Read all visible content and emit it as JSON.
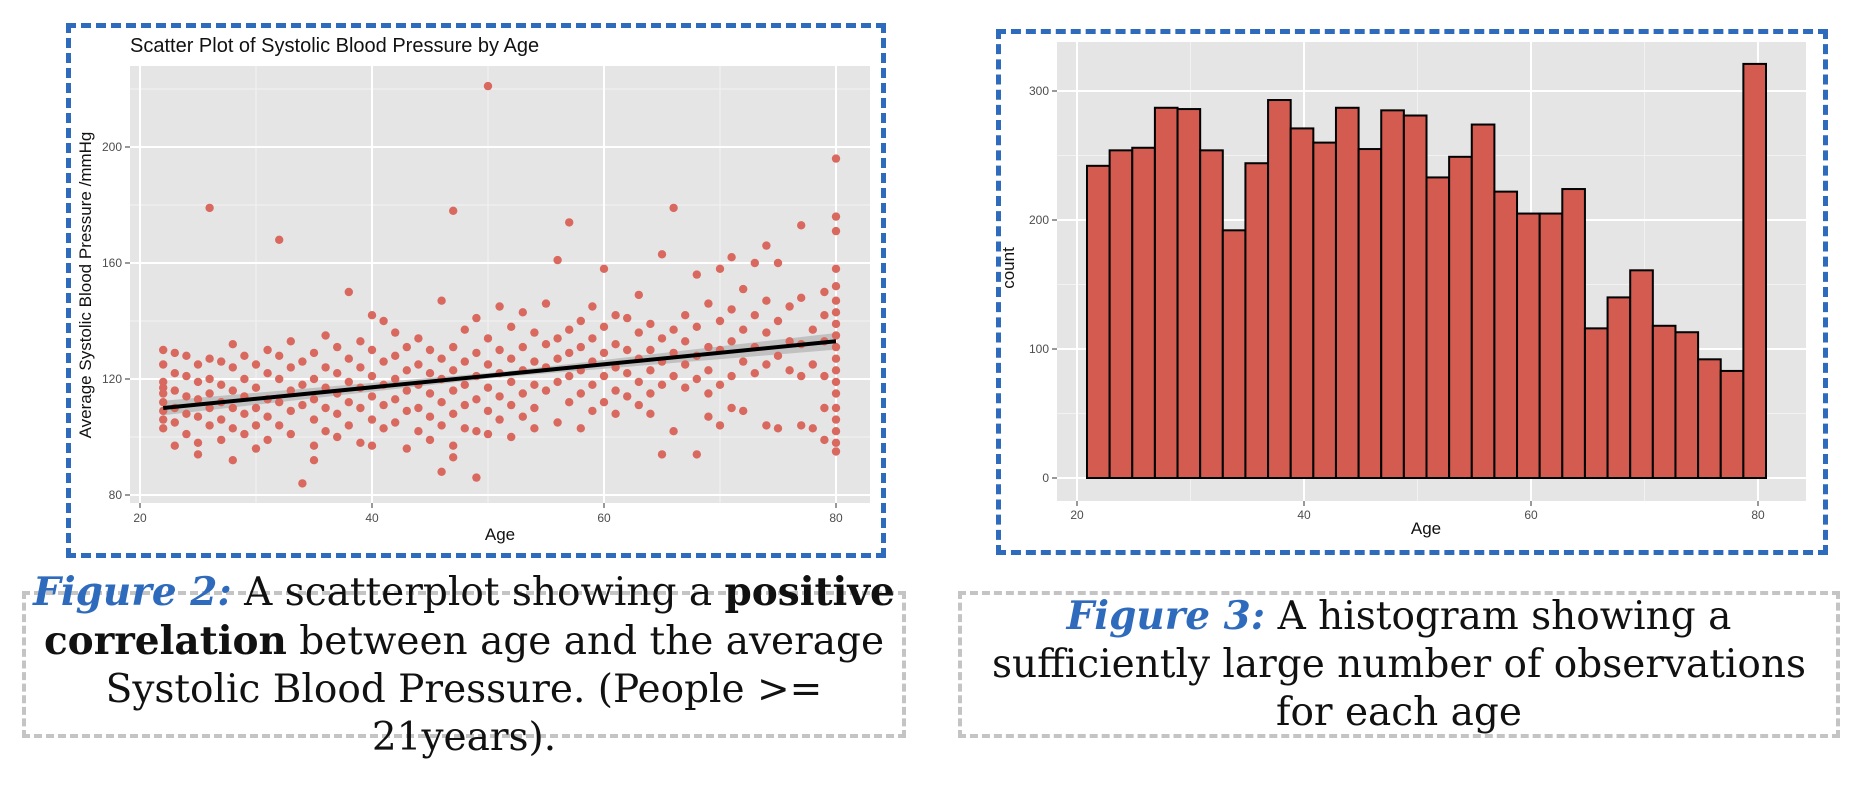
{
  "chart_data": [
    {
      "type": "scatter",
      "title": "Scatter Plot of Systolic Blood Pressure by Age",
      "xlabel": "Age",
      "ylabel": "Average Systolic Blood Pressure /mmHg",
      "xlim": [
        20,
        80
      ],
      "ylim": [
        80,
        220
      ],
      "xticks": [
        20,
        40,
        60,
        80
      ],
      "yticks": [
        80,
        120,
        160,
        200
      ],
      "grid": true,
      "point_color": "#d9695f",
      "background": "#e5e5e5",
      "trend_line": {
        "x": [
          22,
          80
        ],
        "y": [
          110,
          133
        ],
        "color": "#000000",
        "ci_color": "#bdbdbd",
        "ci_halfwidth": 1.8
      },
      "points": [
        [
          22,
          130
        ],
        [
          22,
          125
        ],
        [
          22,
          119
        ],
        [
          22,
          117
        ],
        [
          22,
          115
        ],
        [
          22,
          112
        ],
        [
          22,
          109
        ],
        [
          22,
          106
        ],
        [
          22,
          103
        ],
        [
          23,
          129
        ],
        [
          23,
          122
        ],
        [
          23,
          116
        ],
        [
          23,
          110
        ],
        [
          23,
          105
        ],
        [
          23,
          97
        ],
        [
          24,
          128
        ],
        [
          24,
          121
        ],
        [
          24,
          114
        ],
        [
          24,
          108
        ],
        [
          24,
          101
        ],
        [
          25,
          125
        ],
        [
          25,
          119
        ],
        [
          25,
          113
        ],
        [
          25,
          107
        ],
        [
          25,
          98
        ],
        [
          25,
          94
        ],
        [
          26,
          179
        ],
        [
          26,
          127
        ],
        [
          26,
          120
        ],
        [
          26,
          115
        ],
        [
          26,
          110
        ],
        [
          26,
          104
        ],
        [
          27,
          126
        ],
        [
          27,
          118
        ],
        [
          27,
          112
        ],
        [
          27,
          106
        ],
        [
          27,
          99
        ],
        [
          28,
          132
        ],
        [
          28,
          124
        ],
        [
          28,
          116
        ],
        [
          28,
          110
        ],
        [
          28,
          103
        ],
        [
          28,
          92
        ],
        [
          29,
          128
        ],
        [
          29,
          120
        ],
        [
          29,
          114
        ],
        [
          29,
          108
        ],
        [
          29,
          101
        ],
        [
          30,
          125
        ],
        [
          30,
          117
        ],
        [
          30,
          110
        ],
        [
          30,
          104
        ],
        [
          30,
          96
        ],
        [
          31,
          130
        ],
        [
          31,
          122
        ],
        [
          31,
          113
        ],
        [
          31,
          107
        ],
        [
          31,
          99
        ],
        [
          32,
          168
        ],
        [
          32,
          128
        ],
        [
          32,
          120
        ],
        [
          32,
          112
        ],
        [
          32,
          104
        ],
        [
          33,
          133
        ],
        [
          33,
          124
        ],
        [
          33,
          116
        ],
        [
          33,
          109
        ],
        [
          33,
          101
        ],
        [
          34,
          126
        ],
        [
          34,
          118
        ],
        [
          34,
          111
        ],
        [
          34,
          84
        ],
        [
          35,
          129
        ],
        [
          35,
          120
        ],
        [
          35,
          113
        ],
        [
          35,
          106
        ],
        [
          35,
          97
        ],
        [
          35,
          92
        ],
        [
          36,
          135
        ],
        [
          36,
          124
        ],
        [
          36,
          117
        ],
        [
          36,
          110
        ],
        [
          36,
          102
        ],
        [
          37,
          131
        ],
        [
          37,
          122
        ],
        [
          37,
          115
        ],
        [
          37,
          108
        ],
        [
          37,
          100
        ],
        [
          38,
          150
        ],
        [
          38,
          127
        ],
        [
          38,
          119
        ],
        [
          38,
          112
        ],
        [
          38,
          104
        ],
        [
          39,
          133
        ],
        [
          39,
          124
        ],
        [
          39,
          117
        ],
        [
          39,
          110
        ],
        [
          39,
          98
        ],
        [
          40,
          142
        ],
        [
          40,
          130
        ],
        [
          40,
          121
        ],
        [
          40,
          114
        ],
        [
          40,
          106
        ],
        [
          40,
          97
        ],
        [
          41,
          140
        ],
        [
          41,
          126
        ],
        [
          41,
          118
        ],
        [
          41,
          111
        ],
        [
          41,
          103
        ],
        [
          42,
          136
        ],
        [
          42,
          128
        ],
        [
          42,
          120
        ],
        [
          42,
          113
        ],
        [
          42,
          105
        ],
        [
          43,
          131
        ],
        [
          43,
          123
        ],
        [
          43,
          116
        ],
        [
          43,
          109
        ],
        [
          43,
          96
        ],
        [
          44,
          134
        ],
        [
          44,
          125
        ],
        [
          44,
          118
        ],
        [
          44,
          110
        ],
        [
          44,
          102
        ],
        [
          45,
          130
        ],
        [
          45,
          122
        ],
        [
          45,
          115
        ],
        [
          45,
          107
        ],
        [
          45,
          99
        ],
        [
          46,
          147
        ],
        [
          46,
          127
        ],
        [
          46,
          120
        ],
        [
          46,
          112
        ],
        [
          46,
          104
        ],
        [
          46,
          88
        ],
        [
          47,
          178
        ],
        [
          47,
          131
        ],
        [
          47,
          123
        ],
        [
          47,
          116
        ],
        [
          47,
          108
        ],
        [
          47,
          97
        ],
        [
          47,
          93
        ],
        [
          48,
          137
        ],
        [
          48,
          126
        ],
        [
          48,
          118
        ],
        [
          48,
          111
        ],
        [
          48,
          103
        ],
        [
          49,
          141
        ],
        [
          49,
          129
        ],
        [
          49,
          121
        ],
        [
          49,
          113
        ],
        [
          49,
          102
        ],
        [
          49,
          86
        ],
        [
          50,
          221
        ],
        [
          50,
          134
        ],
        [
          50,
          125
        ],
        [
          50,
          117
        ],
        [
          50,
          109
        ],
        [
          50,
          101
        ],
        [
          51,
          145
        ],
        [
          51,
          130
        ],
        [
          51,
          122
        ],
        [
          51,
          114
        ],
        [
          51,
          106
        ],
        [
          52,
          138
        ],
        [
          52,
          127
        ],
        [
          52,
          119
        ],
        [
          52,
          111
        ],
        [
          52,
          100
        ],
        [
          53,
          143
        ],
        [
          53,
          131
        ],
        [
          53,
          123
        ],
        [
          53,
          115
        ],
        [
          53,
          107
        ],
        [
          54,
          136
        ],
        [
          54,
          126
        ],
        [
          54,
          118
        ],
        [
          54,
          110
        ],
        [
          54,
          103
        ],
        [
          55,
          146
        ],
        [
          55,
          132
        ],
        [
          55,
          124
        ],
        [
          55,
          116
        ],
        [
          56,
          161
        ],
        [
          56,
          134
        ],
        [
          56,
          127
        ],
        [
          56,
          119
        ],
        [
          56,
          105
        ],
        [
          57,
          174
        ],
        [
          57,
          137
        ],
        [
          57,
          129
        ],
        [
          57,
          121
        ],
        [
          57,
          112
        ],
        [
          58,
          140
        ],
        [
          58,
          131
        ],
        [
          58,
          123
        ],
        [
          58,
          115
        ],
        [
          58,
          103
        ],
        [
          59,
          145
        ],
        [
          59,
          134
        ],
        [
          59,
          126
        ],
        [
          59,
          118
        ],
        [
          59,
          109
        ],
        [
          60,
          158
        ],
        [
          60,
          138
        ],
        [
          60,
          129
        ],
        [
          60,
          121
        ],
        [
          60,
          112
        ],
        [
          61,
          142
        ],
        [
          61,
          132
        ],
        [
          61,
          124
        ],
        [
          61,
          116
        ],
        [
          61,
          108
        ],
        [
          62,
          141
        ],
        [
          62,
          130
        ],
        [
          62,
          122
        ],
        [
          62,
          114
        ],
        [
          63,
          149
        ],
        [
          63,
          136
        ],
        [
          63,
          127
        ],
        [
          63,
          119
        ],
        [
          63,
          111
        ],
        [
          64,
          139
        ],
        [
          64,
          130
        ],
        [
          64,
          123
        ],
        [
          64,
          115
        ],
        [
          64,
          108
        ],
        [
          65,
          163
        ],
        [
          65,
          134
        ],
        [
          65,
          126
        ],
        [
          65,
          118
        ],
        [
          65,
          94
        ],
        [
          66,
          179
        ],
        [
          66,
          137
        ],
        [
          66,
          129
        ],
        [
          66,
          121
        ],
        [
          66,
          102
        ],
        [
          67,
          142
        ],
        [
          67,
          133
        ],
        [
          67,
          125
        ],
        [
          67,
          117
        ],
        [
          68,
          156
        ],
        [
          68,
          138
        ],
        [
          68,
          128
        ],
        [
          68,
          120
        ],
        [
          68,
          94
        ],
        [
          69,
          146
        ],
        [
          69,
          131
        ],
        [
          69,
          123
        ],
        [
          69,
          115
        ],
        [
          69,
          107
        ],
        [
          70,
          158
        ],
        [
          70,
          140
        ],
        [
          70,
          130
        ],
        [
          70,
          118
        ],
        [
          70,
          104
        ],
        [
          71,
          162
        ],
        [
          71,
          144
        ],
        [
          71,
          133
        ],
        [
          71,
          121
        ],
        [
          71,
          110
        ],
        [
          72,
          151
        ],
        [
          72,
          137
        ],
        [
          72,
          126
        ],
        [
          72,
          109
        ],
        [
          73,
          160
        ],
        [
          73,
          142
        ],
        [
          73,
          131
        ],
        [
          73,
          122
        ],
        [
          74,
          166
        ],
        [
          74,
          147
        ],
        [
          74,
          136
        ],
        [
          74,
          125
        ],
        [
          74,
          104
        ],
        [
          75,
          160
        ],
        [
          75,
          140
        ],
        [
          75,
          128
        ],
        [
          75,
          103
        ],
        [
          76,
          145
        ],
        [
          76,
          133
        ],
        [
          76,
          123
        ],
        [
          77,
          173
        ],
        [
          77,
          148
        ],
        [
          77,
          132
        ],
        [
          77,
          121
        ],
        [
          77,
          104
        ],
        [
          78,
          137
        ],
        [
          78,
          125
        ],
        [
          78,
          103
        ],
        [
          79,
          150
        ],
        [
          79,
          142
        ],
        [
          79,
          133
        ],
        [
          79,
          121
        ],
        [
          79,
          110
        ],
        [
          79,
          99
        ],
        [
          80,
          196
        ],
        [
          80,
          176
        ],
        [
          80,
          171
        ],
        [
          80,
          158
        ],
        [
          80,
          152
        ],
        [
          80,
          147
        ],
        [
          80,
          143
        ],
        [
          80,
          139
        ],
        [
          80,
          135
        ],
        [
          80,
          131
        ],
        [
          80,
          127
        ],
        [
          80,
          123
        ],
        [
          80,
          119
        ],
        [
          80,
          115
        ],
        [
          80,
          110
        ],
        [
          80,
          106
        ],
        [
          80,
          102
        ],
        [
          80,
          98
        ],
        [
          80,
          95
        ]
      ]
    },
    {
      "type": "bar",
      "subtype": "histogram",
      "title": "",
      "xlabel": "Age",
      "ylabel": "count",
      "xlim": [
        18.9,
        83.3
      ],
      "ylim": [
        -15,
        345
      ],
      "xticks": [
        20,
        40,
        60,
        80
      ],
      "yticks": [
        0,
        100,
        200,
        300
      ],
      "grid": true,
      "bar_color": "#d35b50",
      "bar_edge": "#000000",
      "background": "#e5e5e5",
      "bin_start": 21,
      "bin_width": 2,
      "values": [
        242,
        254,
        256,
        287,
        286,
        254,
        192,
        244,
        293,
        271,
        260,
        287,
        255,
        285,
        281,
        233,
        249,
        274,
        222,
        205,
        205,
        224,
        116,
        140,
        161,
        118,
        113,
        92,
        83,
        321
      ]
    }
  ],
  "captions": {
    "fig2": {
      "label": "Figure 2:",
      "text_a": " A scatterplot showing a ",
      "bold": "positive correlation",
      "text_b": " between age and the average Systolic Blood Pressure. (People >= 21years)."
    },
    "fig3": {
      "label": "Figure 3:",
      "text": " A histogram showing a sufficiently large number of observations for each age"
    }
  },
  "colors": {
    "figure_border": "#2f6bbd",
    "caption_border": "#c4c4c4",
    "figure_label": "#2f6bbd"
  }
}
